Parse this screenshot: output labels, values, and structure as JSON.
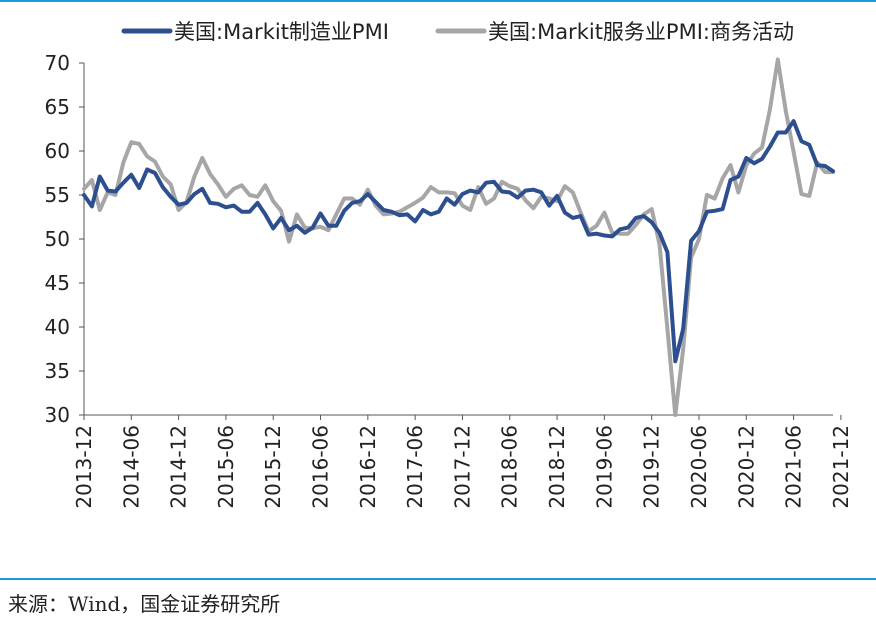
{
  "chart_data": {
    "type": "line",
    "title": "",
    "xlabel": "",
    "ylabel": "",
    "ylim": [
      30,
      70
    ],
    "yticks": [
      30,
      35,
      40,
      45,
      50,
      55,
      60,
      65,
      70
    ],
    "x_tick_labels": [
      "2013-12",
      "2014-06",
      "2014-12",
      "2015-06",
      "2015-12",
      "2016-06",
      "2016-12",
      "2017-06",
      "2017-12",
      "2018-06",
      "2018-12",
      "2019-06",
      "2019-12",
      "2020-06",
      "2020-12",
      "2021-06",
      "2021-12"
    ],
    "x_start": "2013-12",
    "grid": false,
    "legend_position": "top",
    "series": [
      {
        "name": "美国:Markit制造业PMI",
        "color": "#2e4f8f",
        "values": [
          55.0,
          53.7,
          57.1,
          55.5,
          55.4,
          56.4,
          57.3,
          55.8,
          57.9,
          57.5,
          55.9,
          54.8,
          53.9,
          54.1,
          55.1,
          55.7,
          54.1,
          54.0,
          53.6,
          53.8,
          53.1,
          53.1,
          54.1,
          52.8,
          51.2,
          52.4,
          51.0,
          51.5,
          50.7,
          51.3,
          52.9,
          51.5,
          51.5,
          53.2,
          54.1,
          54.3,
          55.1,
          54.2,
          53.3,
          53.1,
          52.7,
          52.8,
          52.0,
          53.3,
          52.8,
          53.1,
          54.6,
          53.9,
          55.1,
          55.5,
          55.3,
          56.4,
          56.5,
          55.4,
          55.3,
          54.7,
          55.5,
          55.6,
          55.3,
          53.8,
          54.9,
          53.0,
          52.4,
          52.6,
          50.5,
          50.6,
          50.4,
          50.3,
          51.1,
          51.3,
          52.4,
          52.6,
          51.9,
          50.7,
          48.5,
          36.1,
          39.8,
          49.8,
          50.9,
          53.1,
          53.2,
          53.4,
          56.7,
          57.1,
          59.2,
          58.6,
          59.1,
          60.5,
          62.1,
          62.1,
          63.4,
          61.1,
          60.7,
          58.4,
          58.3,
          57.7
        ]
      },
      {
        "name": "美国:Markit服务业PMI:商务活动",
        "color": "#a6a6a6",
        "values": [
          55.7,
          56.7,
          53.3,
          55.3,
          55.0,
          58.7,
          61.0,
          60.8,
          59.4,
          58.8,
          57.1,
          56.2,
          53.3,
          54.2,
          57.1,
          59.2,
          57.4,
          56.2,
          54.8,
          55.7,
          56.1,
          55.0,
          54.8,
          56.1,
          54.3,
          53.2,
          49.7,
          52.8,
          51.3,
          51.2,
          51.4,
          51.0,
          52.8,
          54.6,
          54.6,
          53.9,
          55.6,
          53.8,
          52.8,
          52.9,
          53.1,
          53.6,
          54.1,
          54.7,
          55.9,
          55.3,
          55.3,
          55.2,
          53.8,
          53.3,
          55.9,
          54.0,
          54.6,
          56.5,
          56.0,
          55.7,
          54.4,
          53.5,
          54.8,
          54.6,
          54.3,
          56.0,
          55.3,
          53.0,
          50.9,
          51.5,
          53.0,
          50.7,
          50.6,
          50.6,
          51.6,
          52.8,
          53.4,
          49.4,
          39.8,
          26.7,
          37.5,
          47.9,
          50.0,
          55.0,
          54.6,
          56.9,
          58.4,
          55.3,
          58.4,
          59.7,
          60.4,
          64.7,
          70.4,
          64.6,
          59.9,
          55.1,
          54.9,
          58.7,
          57.6,
          57.6
        ]
      }
    ]
  },
  "source_text": "来源：Wind，国金证券研究所"
}
